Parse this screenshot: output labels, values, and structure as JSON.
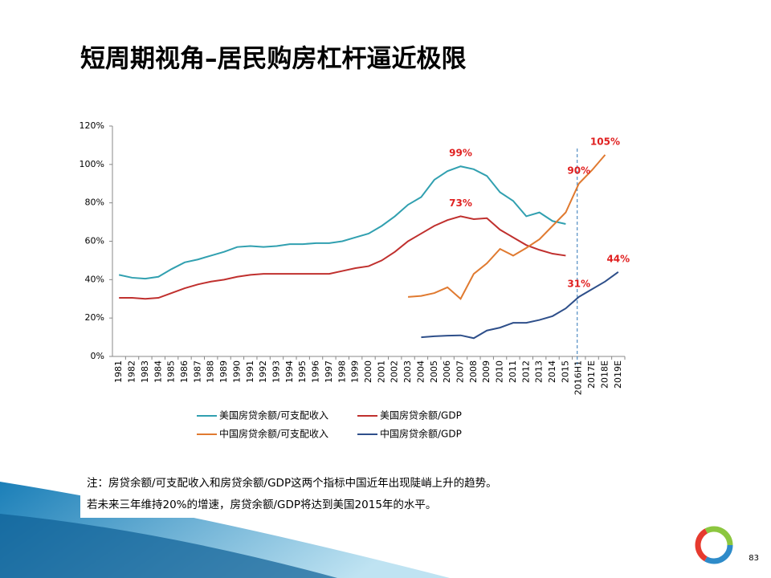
{
  "title": "短周期视角–居民购房杠杆逼近极限",
  "chart_data": {
    "type": "line",
    "categories": [
      "1981",
      "1982",
      "1983",
      "1984",
      "1985",
      "1986",
      "1987",
      "1988",
      "1989",
      "1990",
      "1991",
      "1992",
      "1993",
      "1994",
      "1995",
      "1996",
      "1997",
      "1998",
      "1999",
      "2000",
      "2001",
      "2002",
      "2003",
      "2004",
      "2005",
      "2006",
      "2007",
      "2008",
      "2009",
      "2010",
      "2011",
      "2012",
      "2013",
      "2014",
      "2015",
      "2016H1",
      "2017E",
      "2018E",
      "2019E"
    ],
    "ylim": [
      0,
      120
    ],
    "yticks": [
      {
        "value": 0,
        "label": "0%"
      },
      {
        "value": 20,
        "label": "20%"
      },
      {
        "value": 40,
        "label": "40%"
      },
      {
        "value": 60,
        "label": "60%"
      },
      {
        "value": 80,
        "label": "80%"
      },
      {
        "value": 100,
        "label": "100%"
      },
      {
        "value": 120,
        "label": "120%"
      }
    ],
    "grid": false,
    "series": [
      {
        "name": "美国房贷余额/可支配收入",
        "color": "#31a0b0",
        "values": [
          42.5,
          41,
          40.5,
          41.5,
          45.5,
          49,
          50.5,
          52.5,
          54.5,
          57,
          57.5,
          57,
          57.5,
          58.5,
          58.5,
          59,
          59,
          60,
          62,
          64,
          68,
          73,
          79,
          83,
          92,
          96.5,
          99,
          97.5,
          94,
          85.5,
          81,
          73,
          75,
          70.5,
          69,
          null,
          null,
          null,
          null
        ],
        "value_labels": [
          null,
          null,
          null,
          null,
          null,
          null,
          null,
          null,
          null,
          null,
          null,
          null,
          null,
          null,
          null,
          null,
          null,
          null,
          null,
          null,
          null,
          null,
          null,
          null,
          null,
          null,
          "99%",
          null,
          null,
          null,
          null,
          null,
          null,
          null,
          null,
          null,
          null,
          null,
          null
        ]
      },
      {
        "name": "美国房贷余额/GDP",
        "color": "#c0302e",
        "values": [
          30.5,
          30.5,
          30,
          30.5,
          33,
          35.5,
          37.5,
          39,
          40,
          41.5,
          42.5,
          43,
          43,
          43,
          43,
          43,
          43,
          44.5,
          46,
          47,
          50,
          54.5,
          60,
          64,
          68,
          71,
          73,
          71.5,
          72,
          66,
          62,
          58,
          55.5,
          53.5,
          52.5,
          null,
          null,
          null,
          null
        ],
        "value_labels": [
          null,
          null,
          null,
          null,
          null,
          null,
          null,
          null,
          null,
          null,
          null,
          null,
          null,
          null,
          null,
          null,
          null,
          null,
          null,
          null,
          null,
          null,
          null,
          null,
          null,
          null,
          "73%",
          null,
          null,
          null,
          null,
          null,
          null,
          null,
          null,
          null,
          null,
          null,
          null
        ]
      },
      {
        "name": "中国房贷余额/可支配收入",
        "color": "#e07a30",
        "values": [
          null,
          null,
          null,
          null,
          null,
          null,
          null,
          null,
          null,
          null,
          null,
          null,
          null,
          null,
          null,
          null,
          null,
          null,
          null,
          null,
          null,
          null,
          31,
          31.5,
          33,
          36,
          30,
          43,
          48.5,
          56,
          52.5,
          56.5,
          61,
          68,
          75,
          90,
          97,
          105,
          null
        ],
        "value_labels": [
          null,
          null,
          null,
          null,
          null,
          null,
          null,
          null,
          null,
          null,
          null,
          null,
          null,
          null,
          null,
          null,
          null,
          null,
          null,
          null,
          null,
          null,
          null,
          null,
          null,
          null,
          null,
          null,
          null,
          null,
          null,
          null,
          null,
          null,
          null,
          "90%",
          null,
          "105%",
          null
        ]
      },
      {
        "name": "中国房贷余额/GDP",
        "color": "#2e4f8a",
        "values": [
          null,
          null,
          null,
          null,
          null,
          null,
          null,
          null,
          null,
          null,
          null,
          null,
          null,
          null,
          null,
          null,
          null,
          null,
          null,
          null,
          null,
          null,
          null,
          10,
          10.5,
          10.8,
          11,
          9.5,
          13.5,
          15,
          17.5,
          17.5,
          19,
          21,
          25,
          31,
          35,
          39,
          44
        ],
        "value_labels": [
          null,
          null,
          null,
          null,
          null,
          null,
          null,
          null,
          null,
          null,
          null,
          null,
          null,
          null,
          null,
          null,
          null,
          null,
          null,
          null,
          null,
          null,
          null,
          null,
          null,
          null,
          null,
          null,
          null,
          null,
          null,
          null,
          null,
          null,
          null,
          "31%",
          null,
          null,
          "44%"
        ]
      }
    ]
  },
  "notes": [
    "注：房贷余额/可支配收入和房贷余额/GDP这两个指标中国近年出现陡峭上升的趋势。",
    "若未来三年维持20%的增速，房贷余额/GDP将达到美国2015年的水平。"
  ],
  "page_number": "83"
}
